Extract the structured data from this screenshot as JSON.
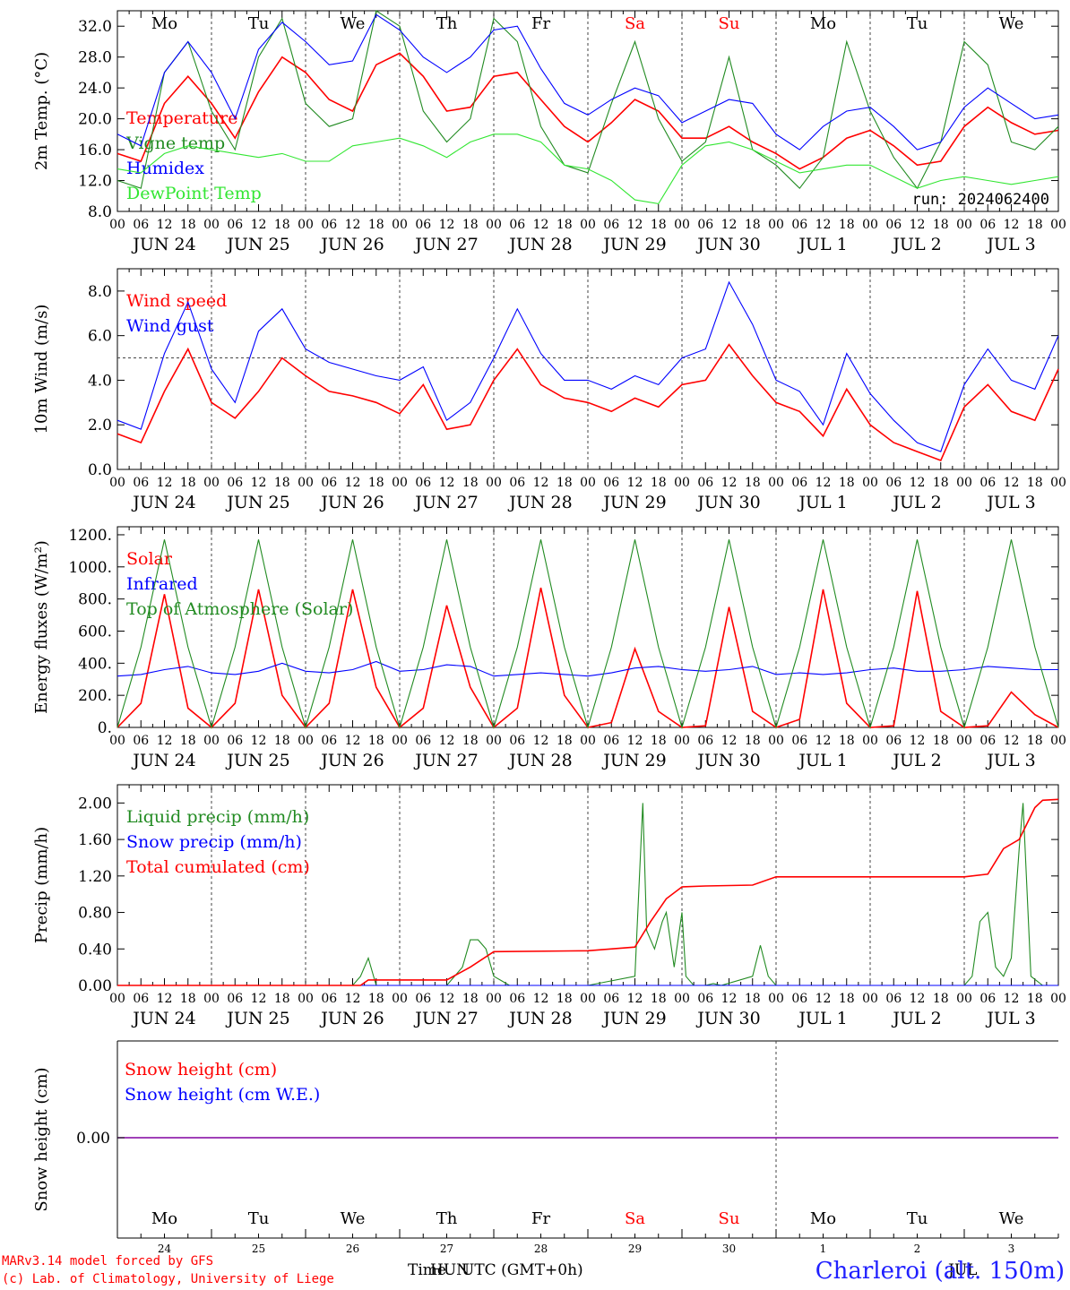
{
  "run_label": "run: 2024062400",
  "footer": {
    "model": "MARv3.14 model forced by GFS",
    "credit": "(c) Lab. of Climatology, University of Liege",
    "station": "Charleroi (alt. 150m)",
    "time_label": "Time",
    "tz_label": "UTC (GMT+0h)",
    "overlap_fragments": [
      "HUN",
      "JUL"
    ]
  },
  "colors": {
    "red": "#ff0000",
    "green": "#228b22",
    "blue": "#0000ff",
    "lightgreen": "#32e632",
    "weekend": "#ff0000",
    "snow": "#8000a0"
  },
  "axis": {
    "hour_ticks": [
      "00",
      "06",
      "12",
      "18"
    ],
    "final_hour": "00",
    "dates": [
      "JUN 24",
      "JUN 25",
      "JUN 26",
      "JUN 27",
      "JUN 28",
      "JUN 29",
      "JUN 30",
      "JUL  1",
      "JUL  2",
      "JUL  3"
    ],
    "weekdays": [
      "Mo",
      "Tu",
      "We",
      "Th",
      "Fr",
      "Sa",
      "Su",
      "Mo",
      "Tu",
      "We"
    ],
    "weekend_index": [
      5,
      6
    ],
    "snow_day_numbers": [
      "24",
      "25",
      "26",
      "27",
      "28",
      "29",
      "30",
      "1",
      "2",
      "3"
    ]
  },
  "chart_data": [
    {
      "type": "line",
      "ylabel": "2m Temp. (°C)",
      "ylim": [
        8,
        34
      ],
      "yticks": [
        "8.0",
        "12.0",
        "16.0",
        "20.0",
        "24.0",
        "28.0",
        "32.0"
      ],
      "x": [
        0,
        6,
        12,
        18,
        24,
        30,
        36,
        42,
        48,
        54,
        60,
        66,
        72,
        78,
        84,
        90,
        96,
        102,
        108,
        114,
        120,
        126,
        132,
        138,
        144,
        150,
        156,
        162,
        168,
        174,
        180,
        186,
        192,
        198,
        204,
        210,
        216,
        222,
        228,
        234,
        240
      ],
      "series": [
        {
          "name": "Temperature",
          "color": "red",
          "values": [
            15.5,
            14.5,
            22.0,
            25.5,
            22.0,
            17.5,
            23.5,
            28.0,
            26.0,
            22.5,
            21.0,
            27.0,
            28.5,
            25.5,
            21.0,
            21.5,
            25.5,
            26.0,
            22.5,
            19.0,
            17.0,
            19.5,
            22.5,
            21.0,
            17.5,
            17.5,
            19.0,
            17.0,
            15.5,
            13.5,
            15.0,
            17.5,
            18.5,
            16.5,
            14.0,
            14.5,
            19.0,
            21.5,
            19.5,
            18.0,
            18.5
          ]
        },
        {
          "name": "Vigne temp",
          "color": "green",
          "values": [
            12.0,
            11.0,
            26.0,
            30.0,
            21.0,
            16.0,
            28.0,
            33.0,
            22.0,
            19.0,
            20.0,
            34.0,
            32.0,
            21.0,
            17.0,
            20.0,
            33.0,
            30.0,
            19.0,
            14.0,
            13.0,
            22.0,
            30.0,
            20.0,
            14.5,
            17.0,
            28.0,
            16.0,
            14.0,
            11.0,
            15.0,
            30.0,
            21.0,
            15.0,
            11.0,
            17.0,
            30.0,
            27.0,
            17.0,
            16.0,
            19.0
          ]
        },
        {
          "name": "Humidex",
          "color": "blue",
          "values": [
            18.0,
            16.5,
            26.0,
            30.0,
            26.0,
            20.0,
            29.0,
            32.5,
            30.0,
            27.0,
            27.5,
            33.5,
            31.5,
            28.0,
            26.0,
            28.0,
            31.5,
            32.0,
            26.5,
            22.0,
            20.5,
            22.5,
            24.0,
            23.0,
            19.5,
            21.0,
            22.5,
            22.0,
            18.0,
            16.0,
            19.0,
            21.0,
            21.5,
            19.0,
            16.0,
            17.0,
            21.5,
            24.0,
            22.0,
            20.0,
            20.5
          ]
        },
        {
          "name": "DewPoint Temp",
          "color": "lightgreen",
          "values": [
            13.5,
            13.0,
            15.5,
            16.5,
            16.0,
            15.5,
            15.0,
            15.5,
            14.5,
            14.5,
            16.5,
            17.0,
            17.5,
            16.5,
            15.0,
            17.0,
            18.0,
            18.0,
            17.0,
            14.0,
            13.5,
            12.0,
            9.5,
            9.0,
            14.0,
            16.5,
            17.0,
            16.0,
            14.5,
            13.0,
            13.5,
            14.0,
            14.0,
            12.5,
            11.0,
            12.0,
            12.5,
            12.0,
            11.5,
            12.0,
            12.5
          ]
        }
      ]
    },
    {
      "type": "line",
      "ylabel": "10m Wind (m/s)",
      "ylim": [
        0,
        9
      ],
      "yticks": [
        "0.0",
        "2.0",
        "4.0",
        "6.0",
        "8.0"
      ],
      "reference_line": 5.0,
      "x": [
        0,
        6,
        12,
        18,
        24,
        30,
        36,
        42,
        48,
        54,
        60,
        66,
        72,
        78,
        84,
        90,
        96,
        102,
        108,
        114,
        120,
        126,
        132,
        138,
        144,
        150,
        156,
        162,
        168,
        174,
        180,
        186,
        192,
        198,
        204,
        210,
        216,
        222,
        228,
        234,
        240
      ],
      "series": [
        {
          "name": "Wind speed",
          "color": "red",
          "values": [
            1.6,
            1.2,
            3.5,
            5.4,
            3.0,
            2.3,
            3.5,
            5.0,
            4.2,
            3.5,
            3.3,
            3.0,
            2.5,
            3.8,
            1.8,
            2.0,
            4.0,
            5.4,
            3.8,
            3.2,
            3.0,
            2.6,
            3.2,
            2.8,
            3.8,
            4.0,
            5.6,
            4.2,
            3.0,
            2.6,
            1.5,
            3.6,
            2.0,
            1.2,
            0.8,
            0.4,
            2.8,
            3.8,
            2.6,
            2.2,
            4.5
          ]
        },
        {
          "name": "Wind gust",
          "color": "blue",
          "values": [
            2.2,
            1.8,
            5.2,
            7.5,
            4.5,
            3.0,
            6.2,
            7.2,
            5.4,
            4.8,
            4.5,
            4.2,
            4.0,
            4.6,
            2.2,
            3.0,
            5.0,
            7.2,
            5.2,
            4.0,
            4.0,
            3.6,
            4.2,
            3.8,
            5.0,
            5.4,
            8.4,
            6.5,
            4.0,
            3.5,
            2.0,
            5.2,
            3.4,
            2.2,
            1.2,
            0.8,
            3.8,
            5.4,
            4.0,
            3.6,
            6.0
          ]
        }
      ]
    },
    {
      "type": "line",
      "ylabel": "Energy fluxes (W/m²)",
      "ylim": [
        0,
        1250
      ],
      "yticks": [
        "0.",
        "200.",
        "400.",
        "600.",
        "800.",
        "1000.",
        "1200."
      ],
      "x": [
        0,
        6,
        12,
        18,
        24,
        30,
        36,
        42,
        48,
        54,
        60,
        66,
        72,
        78,
        84,
        90,
        96,
        102,
        108,
        114,
        120,
        126,
        132,
        138,
        144,
        150,
        156,
        162,
        168,
        174,
        180,
        186,
        192,
        198,
        204,
        210,
        216,
        222,
        228,
        234,
        240
      ],
      "series": [
        {
          "name": "Solar",
          "color": "red",
          "values": [
            0,
            150,
            830,
            120,
            0,
            150,
            860,
            200,
            0,
            150,
            860,
            250,
            0,
            120,
            760,
            250,
            0,
            120,
            870,
            200,
            0,
            30,
            490,
            100,
            0,
            10,
            750,
            100,
            0,
            50,
            860,
            150,
            0,
            10,
            850,
            100,
            0,
            10,
            220,
            80,
            0
          ]
        },
        {
          "name": "Infrared",
          "color": "blue",
          "values": [
            320,
            330,
            360,
            380,
            340,
            330,
            350,
            400,
            350,
            340,
            360,
            410,
            350,
            360,
            390,
            380,
            320,
            330,
            340,
            330,
            320,
            340,
            370,
            380,
            360,
            350,
            360,
            380,
            330,
            340,
            330,
            340,
            360,
            370,
            350,
            350,
            360,
            380,
            370,
            360,
            360
          ]
        },
        {
          "name": "Top of Atmosphere (Solar)",
          "color": "green",
          "values": [
            0,
            500,
            1170,
            500,
            0,
            500,
            1170,
            500,
            0,
            500,
            1170,
            500,
            0,
            500,
            1170,
            500,
            0,
            500,
            1170,
            500,
            0,
            500,
            1170,
            500,
            0,
            500,
            1170,
            500,
            0,
            500,
            1170,
            500,
            0,
            500,
            1170,
            500,
            0,
            500,
            1170,
            500,
            0
          ]
        }
      ]
    },
    {
      "type": "line",
      "ylabel": "Precip (mm/h)",
      "ylim": [
        0,
        2.2
      ],
      "yticks": [
        "0.00",
        "0.40",
        "0.80",
        "1.20",
        "1.60",
        "2.00"
      ],
      "x_liquid": [
        0,
        60,
        62,
        64,
        66,
        68,
        70,
        72,
        84,
        88,
        90,
        92,
        94,
        96,
        98,
        100,
        120,
        132,
        134,
        135,
        137,
        139,
        140,
        142,
        144,
        145,
        147,
        149,
        150,
        152,
        154,
        162,
        164,
        166,
        168,
        216,
        218,
        220,
        222,
        224,
        226,
        228,
        230,
        231,
        233,
        236,
        238,
        240
      ],
      "x_total": [
        0,
        62,
        64,
        68,
        84,
        90,
        96,
        120,
        132,
        136,
        140,
        144,
        150,
        162,
        168,
        216,
        222,
        226,
        230,
        234,
        236,
        240
      ],
      "series": [
        {
          "name": "Liquid precip (mm/h)",
          "color": "green",
          "values": [
            0,
            0,
            0.1,
            0.3,
            0,
            0,
            0,
            0,
            0,
            0.2,
            0.5,
            0.5,
            0.4,
            0.1,
            0.05,
            0,
            0,
            0.1,
            2.0,
            0.6,
            0.4,
            0.7,
            0.8,
            0.2,
            0.8,
            0.1,
            0,
            0,
            0,
            0.02,
            0,
            0.1,
            0.44,
            0.1,
            0,
            0,
            0.1,
            0.7,
            0.8,
            0.2,
            0.1,
            0.3,
            1.5,
            2.0,
            0.1,
            0,
            0,
            0
          ]
        },
        {
          "name": "Snow precip (mm/h)",
          "color": "blue",
          "values": [
            0,
            0
          ]
        },
        {
          "name": "Total cumulated (cm)",
          "color": "red",
          "values": [
            0,
            0,
            0.06,
            0.06,
            0.06,
            0.2,
            0.37,
            0.38,
            0.42,
            0.7,
            0.95,
            1.08,
            1.09,
            1.1,
            1.19,
            1.19,
            1.22,
            1.5,
            1.6,
            1.95,
            2.03,
            2.04
          ]
        }
      ]
    },
    {
      "type": "line",
      "ylabel": "Snow height (cm)",
      "yticks": [
        "0.00"
      ],
      "series": [
        {
          "name": "Snow height (cm)",
          "color": "red",
          "values": [
            0,
            0
          ]
        },
        {
          "name": "Snow height (cm W.E.)",
          "color": "blue",
          "values": [
            0,
            0
          ]
        }
      ]
    }
  ]
}
